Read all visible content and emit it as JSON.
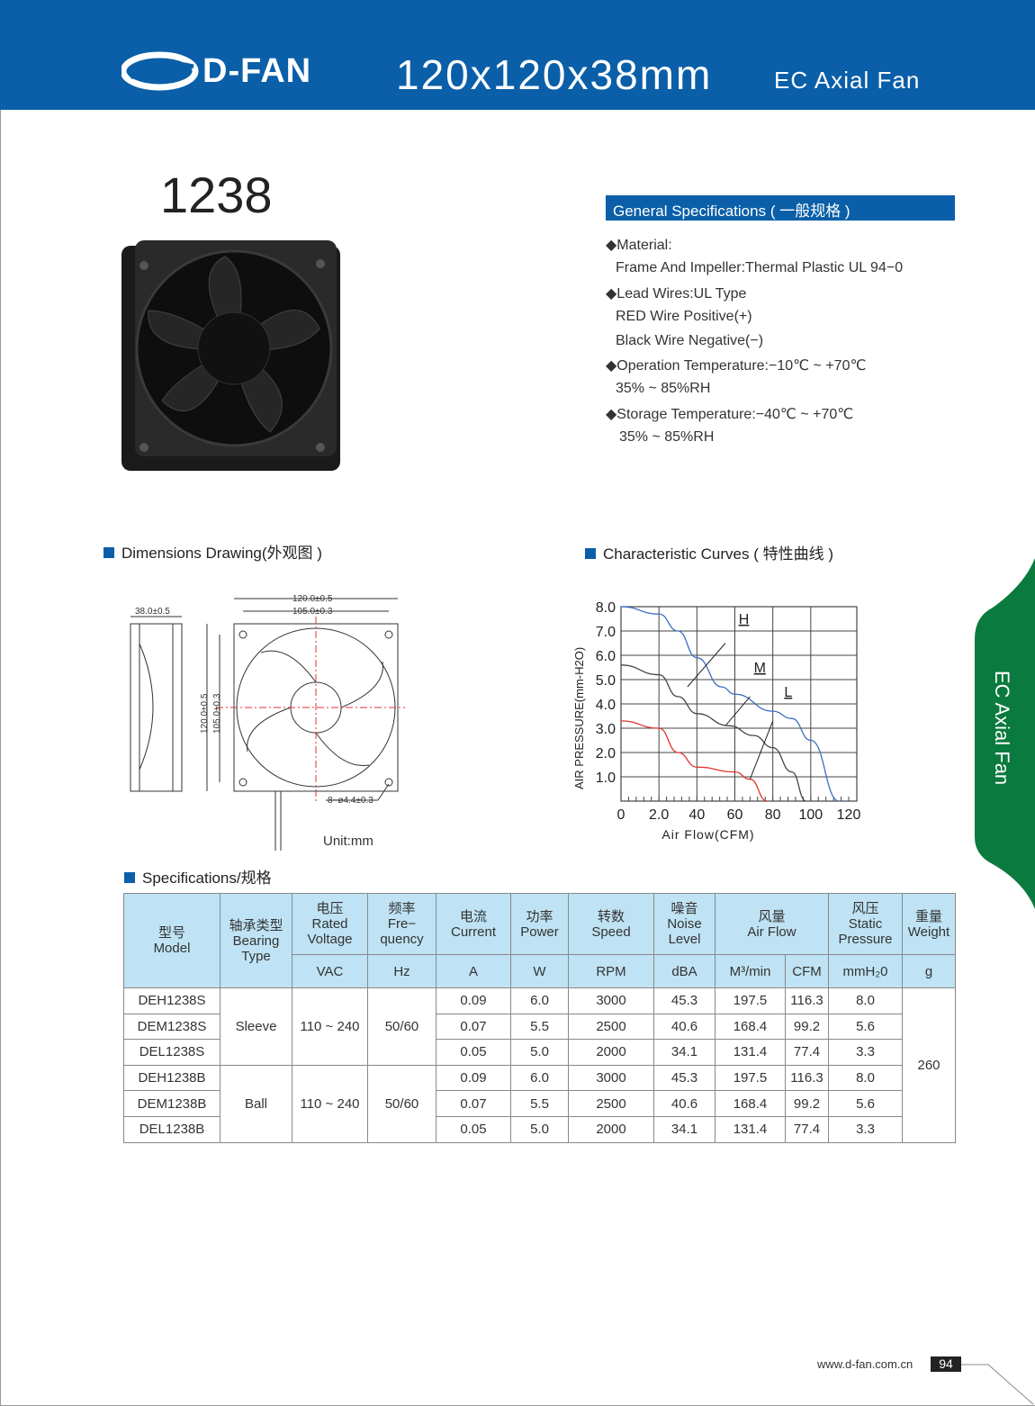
{
  "header": {
    "brand": "D-FAN",
    "size": "120x120x38mm",
    "product_type": "EC Axial Fan"
  },
  "model_number": "1238",
  "general_specs": {
    "title": "General Specifications ( 一般规格 )",
    "lines": [
      "◆Material:",
      "Frame And Impeller:Thermal Plastic UL 94−0",
      "◆Lead Wires:UL Type",
      "RED Wire Positive(+)",
      "Black Wire Negative(−)",
      "◆Operation Temperature:−10℃ ~ +70℃",
      "35% ~ 85%RH",
      "◆Storage Temperature:−40℃ ~ +70℃",
      "35% ~ 85%RH"
    ]
  },
  "dimensions": {
    "title": "Dimensions Drawing(外观图 )",
    "depth": "38.0±0.5",
    "width_outer": "120.0±0.5",
    "width_hole": "105.0±0.3",
    "height_outer": "120.0±0.5",
    "height_hole": "105.0±0.3",
    "holes": "8−ø4.4±0.3",
    "unit": "Unit:mm"
  },
  "curves": {
    "title": "Characteristic Curves ( 特性曲线 )"
  },
  "chart_data": {
    "type": "line",
    "xlabel": "Air Flow(CFM)",
    "ylabel": "AIR PRESSURE(mm-H2O)",
    "xlim": [
      0,
      120
    ],
    "ylim": [
      0,
      8
    ],
    "xticks": [
      "0",
      "2.0",
      "40",
      "60",
      "80",
      "100",
      "120"
    ],
    "yticks": [
      "1.0",
      "2.0",
      "3.0",
      "4.0",
      "5.0",
      "6.0",
      "7.0",
      "8.0"
    ],
    "grid": true,
    "series": [
      {
        "name": "H",
        "color": "#3a6fc0",
        "points": [
          [
            0,
            8.0
          ],
          [
            20,
            7.7
          ],
          [
            30,
            7.0
          ],
          [
            40,
            5.9
          ],
          [
            53,
            4.7
          ],
          [
            60,
            4.4
          ],
          [
            80,
            3.7
          ],
          [
            90,
            3.4
          ],
          [
            100,
            2.5
          ],
          [
            115,
            0
          ]
        ]
      },
      {
        "name": "M",
        "color": "#444444",
        "points": [
          [
            0,
            5.6
          ],
          [
            20,
            5.2
          ],
          [
            30,
            4.3
          ],
          [
            40,
            3.6
          ],
          [
            57,
            3.1
          ],
          [
            70,
            2.7
          ],
          [
            80,
            2.2
          ],
          [
            90,
            1.2
          ],
          [
            97.5,
            0
          ]
        ]
      },
      {
        "name": "L",
        "color": "#e0362b",
        "points": [
          [
            0,
            3.3
          ],
          [
            20,
            3.0
          ],
          [
            30,
            2.0
          ],
          [
            40,
            1.4
          ],
          [
            60,
            1.2
          ],
          [
            68,
            0.9
          ],
          [
            77,
            0
          ]
        ]
      }
    ]
  },
  "specs_table": {
    "title": "Specifications/规格",
    "headers": {
      "model": [
        "型号",
        "Model"
      ],
      "bearing": [
        "轴承类型",
        "Bearing",
        "Type"
      ],
      "voltage": [
        "电压",
        "Rated",
        "Voltage"
      ],
      "freq": [
        "频率",
        "Fre−",
        "quency"
      ],
      "current": [
        "电流",
        "Current"
      ],
      "power": [
        "功率",
        "Power"
      ],
      "speed": [
        "转数",
        "Speed"
      ],
      "noise": [
        "噪音",
        "Noise",
        "Level"
      ],
      "airflow": [
        "风量",
        "Air Flow"
      ],
      "pressure": [
        "风压",
        "Static",
        "Pressure"
      ],
      "weight": [
        "重量",
        "Weight"
      ]
    },
    "units": [
      "VAC",
      "Hz",
      "A",
      "W",
      "RPM",
      "dBA",
      "M³/min",
      "CFM",
      "mmH₂0",
      "g"
    ],
    "groups": [
      {
        "bearing": "Sleeve",
        "voltage": "110 ~ 240",
        "freq": "50/60"
      },
      {
        "bearing": "Ball",
        "voltage": "110 ~ 240",
        "freq": "50/60"
      }
    ],
    "weight": "260",
    "rows": [
      [
        "DEH1238S",
        "0.09",
        "6.0",
        "3000",
        "45.3",
        "197.5",
        "116.3",
        "8.0"
      ],
      [
        "DEM1238S",
        "0.07",
        "5.5",
        "2500",
        "40.6",
        "168.4",
        "99.2",
        "5.6"
      ],
      [
        "DEL1238S",
        "0.05",
        "5.0",
        "2000",
        "34.1",
        "131.4",
        "77.4",
        "3.3"
      ],
      [
        "DEH1238B",
        "0.09",
        "6.0",
        "3000",
        "45.3",
        "197.5",
        "116.3",
        "8.0"
      ],
      [
        "DEM1238B",
        "0.07",
        "5.5",
        "2500",
        "40.6",
        "168.4",
        "99.2",
        "5.6"
      ],
      [
        "DEL1238B",
        "0.05",
        "5.0",
        "2000",
        "34.1",
        "131.4",
        "77.4",
        "3.3"
      ]
    ]
  },
  "side_tab": "EC Axial Fan",
  "footer": {
    "url": "www.d-fan.com.cn",
    "page": "94"
  },
  "colors": {
    "brand_blue": "#0a5fa8",
    "tab_green": "#0b7a3e",
    "table_header": "#bfe3f4"
  }
}
